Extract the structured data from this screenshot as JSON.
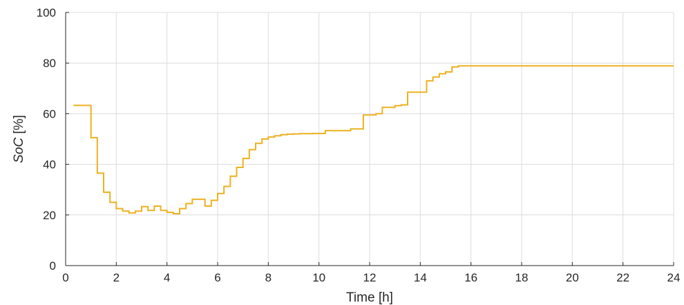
{
  "chart_data": {
    "type": "line",
    "title": "",
    "xlabel": "Time [h]",
    "ylabel_italic": "SoC",
    "ylabel_unit": " [%]",
    "xlim": [
      0,
      24
    ],
    "ylim": [
      0,
      100
    ],
    "xticks": [
      0,
      2,
      4,
      6,
      8,
      10,
      12,
      14,
      16,
      18,
      20,
      22,
      24
    ],
    "yticks": [
      0,
      20,
      40,
      60,
      80,
      100
    ],
    "grid": true,
    "step": true,
    "series": [
      {
        "color": "#EDB120",
        "x": [
          0.3,
          1.0,
          1.25,
          1.5,
          1.75,
          2.0,
          2.25,
          2.5,
          2.75,
          3.0,
          3.25,
          3.5,
          3.75,
          4.0,
          4.25,
          4.5,
          4.75,
          5.0,
          5.25,
          5.5,
          5.75,
          6.0,
          6.25,
          6.5,
          6.75,
          7.0,
          7.25,
          7.5,
          7.75,
          8.0,
          8.25,
          8.5,
          8.75,
          9.0,
          9.25,
          9.5,
          9.75,
          10.0,
          10.25,
          10.5,
          10.75,
          11.0,
          11.25,
          11.5,
          11.75,
          12.0,
          12.25,
          12.5,
          12.75,
          13.0,
          13.25,
          13.5,
          13.75,
          14.0,
          14.25,
          14.5,
          14.75,
          15.0,
          15.25,
          15.5,
          15.75,
          16.0,
          24.0
        ],
        "y": [
          63.3,
          50.5,
          36.5,
          29.0,
          25.0,
          22.5,
          21.5,
          20.8,
          21.5,
          23.3,
          21.8,
          23.5,
          21.8,
          21.0,
          20.5,
          22.5,
          24.5,
          26.2,
          26.2,
          23.5,
          25.8,
          28.5,
          31.3,
          35.3,
          38.8,
          42.3,
          45.8,
          48.3,
          50.0,
          50.8,
          51.3,
          51.7,
          51.9,
          52.0,
          52.1,
          52.1,
          52.2,
          52.2,
          53.3,
          53.3,
          53.3,
          53.3,
          54.0,
          54.0,
          59.5,
          59.5,
          60.0,
          62.5,
          62.5,
          63.2,
          63.5,
          68.5,
          68.5,
          68.5,
          73.0,
          74.5,
          75.8,
          76.5,
          78.5,
          78.9,
          78.9,
          78.9,
          78.9
        ]
      }
    ]
  }
}
